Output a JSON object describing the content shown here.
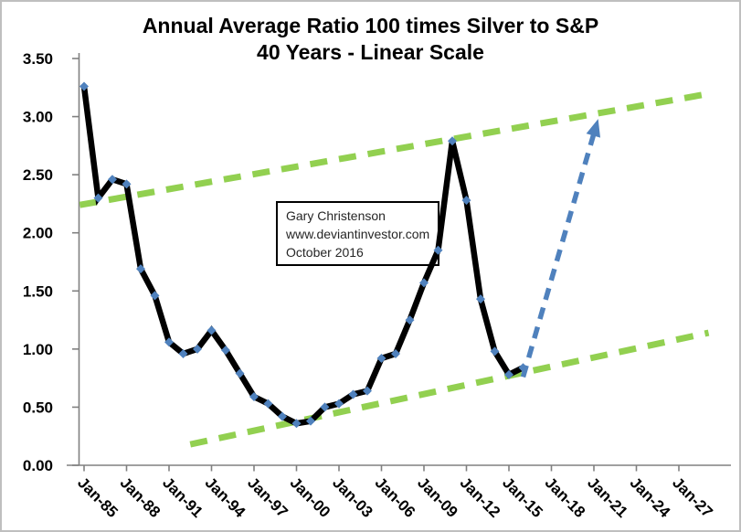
{
  "colors": {
    "data_line": "#000000",
    "marker_blue": "#4f81bd",
    "trend_green": "#92d050",
    "arrow_blue": "#4f81bd",
    "axis_gray": "#808080",
    "label_text": "#000000",
    "annotation_text": "#262626"
  },
  "chart_data": {
    "type": "line",
    "title": "Annual Average Ratio 100 times Silver to S&P",
    "subtitle": "40 Years - Linear Scale",
    "xlabel": "",
    "ylabel": "",
    "ylim": [
      0,
      3.5
    ],
    "y_tick_step": 0.5,
    "y_tick_labels": [
      "3.50",
      "3.00",
      "2.50",
      "2.00",
      "1.50",
      "1.00",
      "0.50",
      "0.00"
    ],
    "x_tick_years": [
      1985,
      1988,
      1991,
      1994,
      1997,
      2000,
      2003,
      2006,
      2009,
      2012,
      2015,
      2018,
      2021,
      2024,
      2027
    ],
    "x_tick_labels": [
      "Jan-85",
      "Jan-88",
      "Jan-91",
      "Jan-94",
      "Jan-97",
      "Jan-00",
      "Jan-03",
      "Jan-06",
      "Jan-09",
      "Jan-12",
      "Jan-15",
      "Jan-18",
      "Jan-21",
      "Jan-24",
      "Jan-27"
    ],
    "grid": false,
    "legend": "none",
    "series": [
      {
        "name": "Annual average ratio: 100 x Silver / S&P",
        "years": [
          1985,
          1986,
          1987,
          1988,
          1989,
          1990,
          1991,
          1992,
          1993,
          1994,
          1995,
          1996,
          1997,
          1998,
          1999,
          2000,
          2001,
          2002,
          2003,
          2004,
          2005,
          2006,
          2007,
          2008,
          2009,
          2010,
          2011,
          2012,
          2013,
          2014,
          2015,
          2016
        ],
        "values": [
          3.26,
          2.3,
          2.46,
          2.42,
          1.69,
          1.46,
          1.06,
          0.96,
          1.0,
          1.16,
          0.99,
          0.79,
          0.59,
          0.53,
          0.42,
          0.36,
          0.38,
          0.5,
          0.53,
          0.61,
          0.64,
          0.92,
          0.96,
          1.25,
          1.57,
          1.85,
          2.79,
          2.28,
          1.43,
          0.98,
          0.78,
          0.84
        ]
      }
    ],
    "trend_channel": {
      "upper": {
        "from": {
          "year": 1984.7,
          "value": 2.24
        },
        "to": {
          "year": 2028.8,
          "value": 3.19
        }
      },
      "lower": {
        "from": {
          "year": 1992.5,
          "value": 0.18
        },
        "to": {
          "year": 2029.1,
          "value": 1.14
        }
      }
    },
    "projection_arrow": {
      "from": {
        "year": 2016.0,
        "value": 0.76
      },
      "to": {
        "year": 2021.3,
        "value": 2.98
      }
    },
    "annotation": {
      "lines": [
        "Gary Christenson",
        "www.deviantinvestor.com",
        "October 2016"
      ]
    }
  }
}
